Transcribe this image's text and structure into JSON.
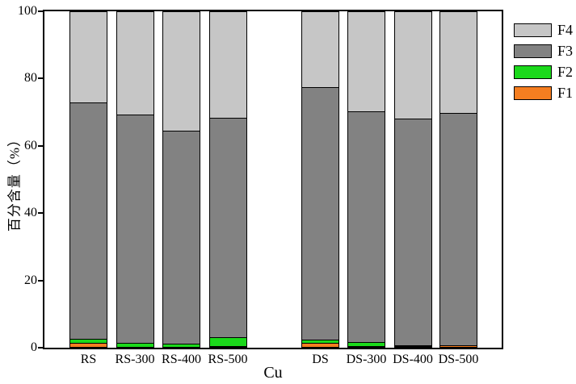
{
  "chart_data": {
    "type": "bar",
    "stacked": true,
    "title": "",
    "xlabel": "Cu",
    "ylabel": "百分含量（%）",
    "categories": [
      "RS",
      "RS-300",
      "RS-400",
      "RS-500",
      "DS",
      "DS-300",
      "DS-400",
      "DS-500"
    ],
    "series": [
      {
        "name": "F1",
        "color": "#F57E20",
        "values": [
          1.3,
          0,
          0,
          0.3,
          1.2,
          0.2,
          0.2,
          0.5
        ]
      },
      {
        "name": "F2",
        "color": "#1BD91B",
        "values": [
          1.2,
          1.3,
          1.0,
          2.5,
          1.0,
          1.2,
          0.2,
          0
        ]
      },
      {
        "name": "F3",
        "color": "#828282",
        "values": [
          70.5,
          68.2,
          63.5,
          65.7,
          75.3,
          68.9,
          67.8,
          69.5
        ]
      },
      {
        "name": "F4",
        "color": "#C6C6C6",
        "values": [
          27.0,
          30.5,
          35.5,
          31.5,
          22.5,
          29.7,
          31.8,
          30.0
        ]
      }
    ],
    "ylim": [
      0,
      100
    ],
    "ytick_step": 20,
    "ytick_labels": [
      "0",
      "20",
      "40",
      "60",
      "80",
      "100"
    ],
    "grid": false,
    "legend_position": "outside-right-top",
    "legend_order": [
      "F4",
      "F3",
      "F2",
      "F1"
    ],
    "axis_color": "#000000",
    "bar_border_color": "#000000",
    "background_color": "#FFFFFF"
  }
}
